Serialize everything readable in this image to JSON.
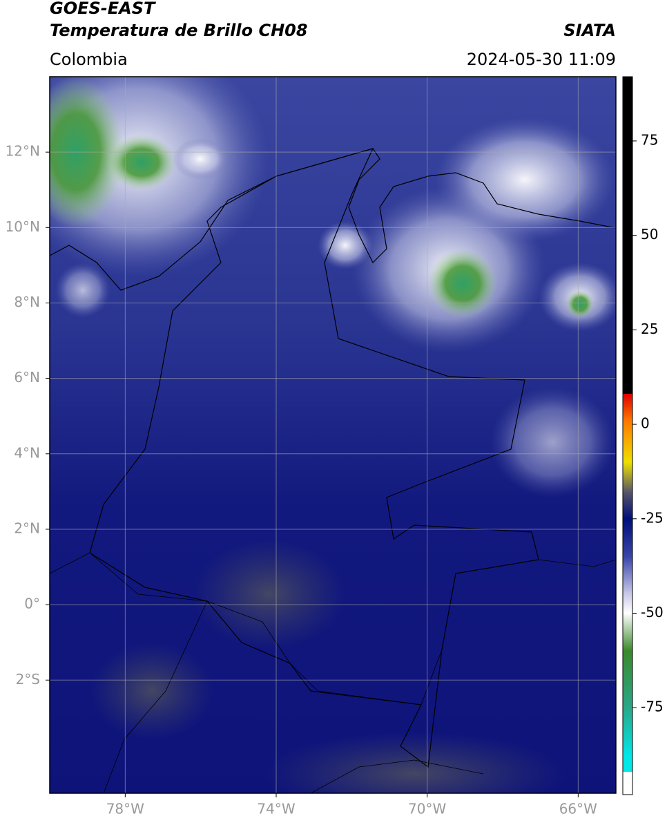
{
  "header": {
    "satellite": "GOES-EAST",
    "product": "Temperatura de Brillo CH08",
    "agency": "SIATA",
    "region": "Colombia",
    "datetime": "2024-05-30 11:09"
  },
  "map": {
    "xlim": [
      -80,
      -65
    ],
    "ylim": [
      -5,
      14
    ],
    "xticks": [
      {
        "value": -78,
        "label": "78°W"
      },
      {
        "value": -74,
        "label": "74°W"
      },
      {
        "value": -70,
        "label": "70°W"
      },
      {
        "value": -66,
        "label": "66°W"
      }
    ],
    "yticks": [
      {
        "value": 12,
        "label": "12°N"
      },
      {
        "value": 10,
        "label": "10°N"
      },
      {
        "value": 8,
        "label": "8°N"
      },
      {
        "value": 6,
        "label": "6°N"
      },
      {
        "value": 4,
        "label": "4°N"
      },
      {
        "value": 2,
        "label": "2°N"
      },
      {
        "value": 0,
        "label": "0°"
      },
      {
        "value": -2,
        "label": "2°S"
      }
    ],
    "grid": true
  },
  "colorbar": {
    "lim": [
      -98,
      92
    ],
    "ticks": [
      75,
      50,
      25,
      0,
      -25,
      -50,
      -75
    ]
  }
}
